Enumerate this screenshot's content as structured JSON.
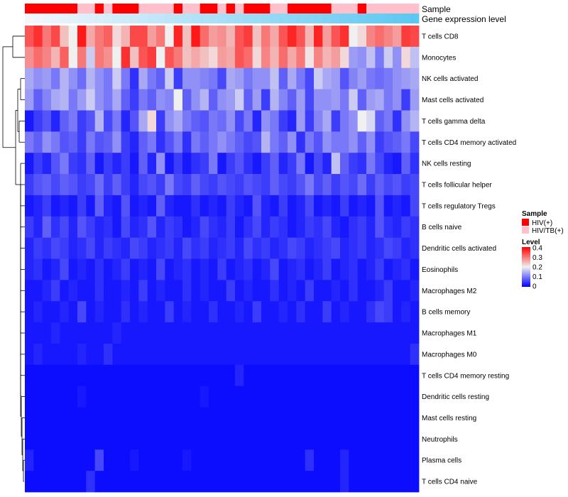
{
  "chart_data": {
    "type": "heatmap",
    "title": "",
    "columns": 45,
    "annotations": [
      {
        "name": "Sample"
      },
      {
        "name": "Gene expression level"
      }
    ],
    "sample_annotation": [
      1,
      1,
      1,
      1,
      1,
      1,
      0,
      0,
      1,
      0,
      1,
      1,
      1,
      0,
      0,
      0,
      0,
      1,
      0,
      0,
      1,
      1,
      0,
      1,
      0,
      1,
      1,
      1,
      0,
      0,
      1,
      1,
      1,
      1,
      1,
      0,
      0,
      0,
      1,
      0,
      0,
      0,
      0,
      0,
      0
    ],
    "rows": [
      {
        "label": "T cells CD8",
        "values": [
          0.33,
          0.36,
          0.3,
          0.34,
          0.24,
          0.2,
          0.38,
          0.26,
          0.3,
          0.32,
          0.22,
          0.25,
          0.34,
          0.34,
          0.27,
          0.3,
          0.2,
          0.37,
          0.24,
          0.38,
          0.31,
          0.27,
          0.28,
          0.25,
          0.33,
          0.35,
          0.24,
          0.3,
          0.26,
          0.33,
          0.37,
          0.33,
          0.25,
          0.37,
          0.27,
          0.33,
          0.36,
          0.2,
          0.22,
          0.29,
          0.31,
          0.29,
          0.27,
          0.35,
          0.34
        ]
      },
      {
        "label": "Monocytes",
        "values": [
          0.28,
          0.31,
          0.29,
          0.25,
          0.32,
          0.2,
          0.3,
          0.17,
          0.3,
          0.28,
          0.2,
          0.36,
          0.24,
          0.33,
          0.35,
          0.2,
          0.33,
          0.3,
          0.24,
          0.26,
          0.24,
          0.22,
          0.27,
          0.26,
          0.33,
          0.31,
          0.22,
          0.29,
          0.25,
          0.31,
          0.26,
          0.3,
          0.21,
          0.29,
          0.25,
          0.27,
          0.22,
          0.13,
          0.12,
          0.16,
          0.1,
          0.17,
          0.12,
          0.22,
          0.16
        ]
      },
      {
        "label": "NK cells activated",
        "values": [
          0.14,
          0.12,
          0.13,
          0.1,
          0.15,
          0.12,
          0.09,
          0.15,
          0.12,
          0.1,
          0.17,
          0.1,
          0.04,
          0.14,
          0.1,
          0.08,
          0.17,
          0.05,
          0.12,
          0.12,
          0.11,
          0.1,
          0.06,
          0.14,
          0.13,
          0.1,
          0.12,
          0.12,
          0.16,
          0.08,
          0.14,
          0.1,
          0.06,
          0.17,
          0.14,
          0.13,
          0.07,
          0.11,
          0.13,
          0.1,
          0.09,
          0.1,
          0.12,
          0.13,
          0.14
        ]
      },
      {
        "label": "Mast cells activated",
        "values": [
          0.13,
          0.08,
          0.11,
          0.14,
          0.15,
          0.1,
          0.13,
          0.17,
          0.12,
          0.1,
          0.14,
          0.08,
          0.05,
          0.1,
          0.08,
          0.12,
          0.11,
          0.2,
          0.08,
          0.12,
          0.15,
          0.08,
          0.12,
          0.13,
          0.17,
          0.08,
          0.13,
          0.05,
          0.15,
          0.11,
          0.08,
          0.13,
          0.06,
          0.12,
          0.12,
          0.13,
          0.1,
          0.17,
          0.08,
          0.13,
          0.14,
          0.1,
          0.12,
          0.05,
          0.13
        ]
      },
      {
        "label": "T cells gamma delta",
        "values": [
          0.02,
          0.05,
          0.07,
          0.03,
          0.08,
          0.1,
          0.05,
          0.07,
          0.15,
          0.06,
          0.1,
          0.03,
          0.07,
          0.14,
          0.22,
          0.05,
          0.12,
          0.14,
          0.1,
          0.08,
          0.07,
          0.1,
          0.09,
          0.12,
          0.06,
          0.1,
          0.03,
          0.12,
          0.1,
          0.05,
          0.03,
          0.13,
          0.05,
          0.11,
          0.14,
          0.05,
          0.1,
          0.12,
          0.2,
          0.18,
          0.08,
          0.1,
          0.04,
          0.12,
          0.15
        ]
      },
      {
        "label": "T cells CD4 memory activated",
        "values": [
          0.1,
          0.08,
          0.12,
          0.1,
          0.07,
          0.08,
          0.05,
          0.1,
          0.07,
          0.08,
          0.12,
          0.05,
          0.03,
          0.08,
          0.1,
          0.04,
          0.07,
          0.1,
          0.04,
          0.1,
          0.08,
          0.1,
          0.12,
          0.1,
          0.08,
          0.06,
          0.07,
          0.15,
          0.1,
          0.08,
          0.12,
          0.04,
          0.1,
          0.07,
          0.12,
          0.1,
          0.1,
          0.12,
          0.08,
          0.12,
          0.05,
          0.07,
          0.08,
          0.1,
          0.06
        ]
      },
      {
        "label": "NK cells resting",
        "values": [
          0.02,
          0.05,
          0.03,
          0.07,
          0.1,
          0.05,
          0.04,
          0.08,
          0.02,
          0.05,
          0.03,
          0.05,
          0.02,
          0.08,
          0.03,
          0.12,
          0.02,
          0.05,
          0.02,
          0.04,
          0.05,
          0.1,
          0.02,
          0.05,
          0.07,
          0.04,
          0.02,
          0.05,
          0.08,
          0.03,
          0.05,
          0.1,
          0.02,
          0.06,
          0.03,
          0.16,
          0.08,
          0.05,
          0.04,
          0.1,
          0.06,
          0.03,
          0.02,
          0.08,
          0.04
        ]
      },
      {
        "label": "T cells follicular helper",
        "values": [
          0.05,
          0.07,
          0.08,
          0.06,
          0.08,
          0.07,
          0.05,
          0.06,
          0.09,
          0.05,
          0.08,
          0.05,
          0.03,
          0.06,
          0.07,
          0.05,
          0.1,
          0.06,
          0.05,
          0.08,
          0.06,
          0.05,
          0.07,
          0.06,
          0.05,
          0.07,
          0.06,
          0.05,
          0.08,
          0.06,
          0.05,
          0.07,
          0.1,
          0.06,
          0.08,
          0.05,
          0.07,
          0.06,
          0.09,
          0.05,
          0.08,
          0.06,
          0.07,
          0.05,
          0.06
        ]
      },
      {
        "label": "T cells regulatory  Tregs",
        "values": [
          0.02,
          0.03,
          0.05,
          0.02,
          0.03,
          0.02,
          0.05,
          0.02,
          0.08,
          0.03,
          0.02,
          0.07,
          0.02,
          0.03,
          0.02,
          0.08,
          0.03,
          0.02,
          0.02,
          0.04,
          0.02,
          0.03,
          0.02,
          0.05,
          0.03,
          0.02,
          0.07,
          0.03,
          0.02,
          0.05,
          0.02,
          0.03,
          0.06,
          0.02,
          0.03,
          0.02,
          0.05,
          0.02,
          0.03,
          0.02,
          0.07,
          0.02,
          0.03,
          0.02,
          0.06
        ]
      },
      {
        "label": "B cells naive",
        "values": [
          0.05,
          0.03,
          0.08,
          0.04,
          0.06,
          0.03,
          0.07,
          0.05,
          0.03,
          0.04,
          0.02,
          0.06,
          0.03,
          0.04,
          0.07,
          0.03,
          0.05,
          0.04,
          0.02,
          0.03,
          0.06,
          0.04,
          0.03,
          0.05,
          0.02,
          0.04,
          0.06,
          0.03,
          0.05,
          0.04,
          0.02,
          0.03,
          0.05,
          0.04,
          0.06,
          0.03,
          0.02,
          0.04,
          0.05,
          0.03,
          0.07,
          0.04,
          0.03,
          0.05,
          0.04
        ]
      },
      {
        "label": "Dendritic cells activated",
        "values": [
          0.03,
          0.05,
          0.04,
          0.06,
          0.05,
          0.03,
          0.04,
          0.06,
          0.03,
          0.05,
          0.04,
          0.03,
          0.06,
          0.05,
          0.03,
          0.04,
          0.05,
          0.03,
          0.06,
          0.04,
          0.05,
          0.03,
          0.04,
          0.05,
          0.03,
          0.06,
          0.04,
          0.05,
          0.03,
          0.04,
          0.06,
          0.05,
          0.03,
          0.04,
          0.05,
          0.06,
          0.03,
          0.04,
          0.05,
          0.03,
          0.04,
          0.06,
          0.05,
          0.03,
          0.04
        ]
      },
      {
        "label": "Eosinophils",
        "values": [
          0.03,
          0.04,
          0.02,
          0.03,
          0.06,
          0.02,
          0.03,
          0.02,
          0.04,
          0.02,
          0.03,
          0.05,
          0.02,
          0.03,
          0.02,
          0.06,
          0.02,
          0.03,
          0.04,
          0.02,
          0.03,
          0.02,
          0.05,
          0.02,
          0.03,
          0.04,
          0.02,
          0.03,
          0.06,
          0.02,
          0.03,
          0.04,
          0.02,
          0.03,
          0.05,
          0.02,
          0.03,
          0.04,
          0.02,
          0.03,
          0.05,
          0.02,
          0.03,
          0.04,
          0.02
        ]
      },
      {
        "label": "Macrophages M2",
        "values": [
          0.02,
          0.02,
          0.03,
          0.05,
          0.02,
          0.03,
          0.02,
          0.02,
          0.04,
          0.02,
          0.02,
          0.03,
          0.02,
          0.05,
          0.02,
          0.03,
          0.02,
          0.02,
          0.04,
          0.02,
          0.03,
          0.02,
          0.02,
          0.05,
          0.02,
          0.03,
          0.02,
          0.02,
          0.04,
          0.02,
          0.03,
          0.02,
          0.05,
          0.02,
          0.02,
          0.03,
          0.02,
          0.04,
          0.02,
          0.02,
          0.03,
          0.05,
          0.02,
          0.02,
          0.03
        ]
      },
      {
        "label": "B cells memory",
        "values": [
          0.02,
          0.03,
          0.02,
          0.02,
          0.03,
          0.02,
          0.06,
          0.02,
          0.03,
          0.02,
          0.02,
          0.04,
          0.02,
          0.03,
          0.02,
          0.02,
          0.05,
          0.02,
          0.03,
          0.02,
          0.02,
          0.04,
          0.02,
          0.02,
          0.03,
          0.02,
          0.05,
          0.02,
          0.02,
          0.03,
          0.02,
          0.04,
          0.02,
          0.02,
          0.05,
          0.02,
          0.03,
          0.02,
          0.02,
          0.04,
          0.06,
          0.05,
          0.02,
          0.03,
          0.02
        ]
      },
      {
        "label": "Macrophages M1",
        "values": [
          0.02,
          0.02,
          0.02,
          0.03,
          0.02,
          0.02,
          0.02,
          0.02,
          0.02,
          0.02,
          0.03,
          0.02,
          0.02,
          0.02,
          0.02,
          0.02,
          0.02,
          0.02,
          0.02,
          0.02,
          0.02,
          0.02,
          0.02,
          0.02,
          0.02,
          0.02,
          0.02,
          0.02,
          0.02,
          0.02,
          0.02,
          0.02,
          0.02,
          0.02,
          0.02,
          0.02,
          0.02,
          0.02,
          0.02,
          0.02,
          0.02,
          0.02,
          0.02,
          0.02,
          0.02
        ]
      },
      {
        "label": "Macrophages M0",
        "values": [
          0.02,
          0.03,
          0.02,
          0.02,
          0.02,
          0.02,
          0.03,
          0.02,
          0.02,
          0.04,
          0.02,
          0.02,
          0.02,
          0.02,
          0.02,
          0.02,
          0.02,
          0.02,
          0.02,
          0.02,
          0.02,
          0.02,
          0.02,
          0.02,
          0.02,
          0.02,
          0.02,
          0.02,
          0.02,
          0.02,
          0.02,
          0.02,
          0.02,
          0.02,
          0.02,
          0.02,
          0.02,
          0.02,
          0.02,
          0.02,
          0.02,
          0.02,
          0.02,
          0.02,
          0.04
        ]
      },
      {
        "label": "T cells CD4 memory resting",
        "values": [
          0.01,
          0.01,
          0.01,
          0.01,
          0.01,
          0.01,
          0.01,
          0.01,
          0.01,
          0.01,
          0.01,
          0.01,
          0.01,
          0.01,
          0.01,
          0.01,
          0.01,
          0.01,
          0.01,
          0.01,
          0.01,
          0.01,
          0.01,
          0.01,
          0.03,
          0.01,
          0.01,
          0.01,
          0.01,
          0.01,
          0.01,
          0.01,
          0.01,
          0.01,
          0.01,
          0.01,
          0.01,
          0.01,
          0.01,
          0.01,
          0.01,
          0.01,
          0.01,
          0.01,
          0.01
        ]
      },
      {
        "label": "Dendritic cells resting",
        "values": [
          0.01,
          0.01,
          0.01,
          0.01,
          0.01,
          0.01,
          0.02,
          0.01,
          0.01,
          0.01,
          0.01,
          0.01,
          0.01,
          0.01,
          0.01,
          0.01,
          0.01,
          0.01,
          0.01,
          0.01,
          0.02,
          0.01,
          0.01,
          0.01,
          0.01,
          0.01,
          0.01,
          0.01,
          0.01,
          0.01,
          0.01,
          0.01,
          0.01,
          0.01,
          0.01,
          0.01,
          0.01,
          0.01,
          0.01,
          0.01,
          0.01,
          0.01,
          0.01,
          0.01,
          0.01
        ]
      },
      {
        "label": "Mast cells resting",
        "values": [
          0.01,
          0.01,
          0.01,
          0.01,
          0.01,
          0.01,
          0.01,
          0.01,
          0.01,
          0.01,
          0.01,
          0.01,
          0.01,
          0.01,
          0.01,
          0.01,
          0.01,
          0.01,
          0.01,
          0.01,
          0.01,
          0.01,
          0.01,
          0.01,
          0.01,
          0.01,
          0.01,
          0.01,
          0.01,
          0.01,
          0.01,
          0.01,
          0.01,
          0.01,
          0.01,
          0.01,
          0.01,
          0.01,
          0.01,
          0.01,
          0.01,
          0.01,
          0.01,
          0.01,
          0.01
        ]
      },
      {
        "label": "Neutrophils",
        "values": [
          0.01,
          0.01,
          0.01,
          0.01,
          0.01,
          0.01,
          0.01,
          0.01,
          0.01,
          0.01,
          0.01,
          0.01,
          0.01,
          0.01,
          0.01,
          0.01,
          0.01,
          0.01,
          0.01,
          0.01,
          0.01,
          0.01,
          0.01,
          0.01,
          0.01,
          0.01,
          0.01,
          0.01,
          0.01,
          0.01,
          0.01,
          0.01,
          0.01,
          0.01,
          0.01,
          0.01,
          0.01,
          0.01,
          0.01,
          0.01,
          0.01,
          0.01,
          0.01,
          0.01,
          0.01
        ]
      },
      {
        "label": "Plasma cells",
        "values": [
          0.03,
          0.01,
          0.01,
          0.01,
          0.01,
          0.01,
          0.01,
          0.01,
          0.06,
          0.01,
          0.01,
          0.01,
          0.02,
          0.01,
          0.01,
          0.01,
          0.01,
          0.01,
          0.02,
          0.01,
          0.01,
          0.01,
          0.01,
          0.01,
          0.01,
          0.01,
          0.01,
          0.01,
          0.01,
          0.01,
          0.01,
          0.01,
          0.04,
          0.01,
          0.01,
          0.01,
          0.03,
          0.01,
          0.01,
          0.01,
          0.01,
          0.01,
          0.01,
          0.01,
          0.01
        ]
      },
      {
        "label": "T cells CD4 naive",
        "values": [
          0.01,
          0.01,
          0.01,
          0.01,
          0.01,
          0.01,
          0.01,
          0.04,
          0.01,
          0.01,
          0.01,
          0.01,
          0.01,
          0.01,
          0.01,
          0.01,
          0.01,
          0.01,
          0.01,
          0.01,
          0.01,
          0.01,
          0.01,
          0.01,
          0.01,
          0.01,
          0.01,
          0.01,
          0.01,
          0.01,
          0.01,
          0.01,
          0.01,
          0.01,
          0.01,
          0.01,
          0.03,
          0.01,
          0.01,
          0.01,
          0.01,
          0.01,
          0.01,
          0.01,
          0.01
        ]
      }
    ],
    "value_range": [
      0,
      0.4
    ],
    "legends": [
      {
        "title": "Sample",
        "items": [
          {
            "label": "HIV(+)",
            "color": "#ff0000"
          },
          {
            "label": "HIV/TB(+)",
            "color": "#ffc0cb"
          }
        ]
      },
      {
        "title": "Level",
        "ticks": [
          "0.4",
          "0.3",
          "0.2",
          "0.1",
          "0"
        ]
      }
    ]
  },
  "colors": {
    "low": "#0000ff",
    "mid": "#f0f0f0",
    "high": "#ff0000",
    "hiv": "#ff0000",
    "hivtb": "#ffc0cb",
    "gene_low": "#f4f6fb",
    "gene_high": "#5bc8f2"
  }
}
